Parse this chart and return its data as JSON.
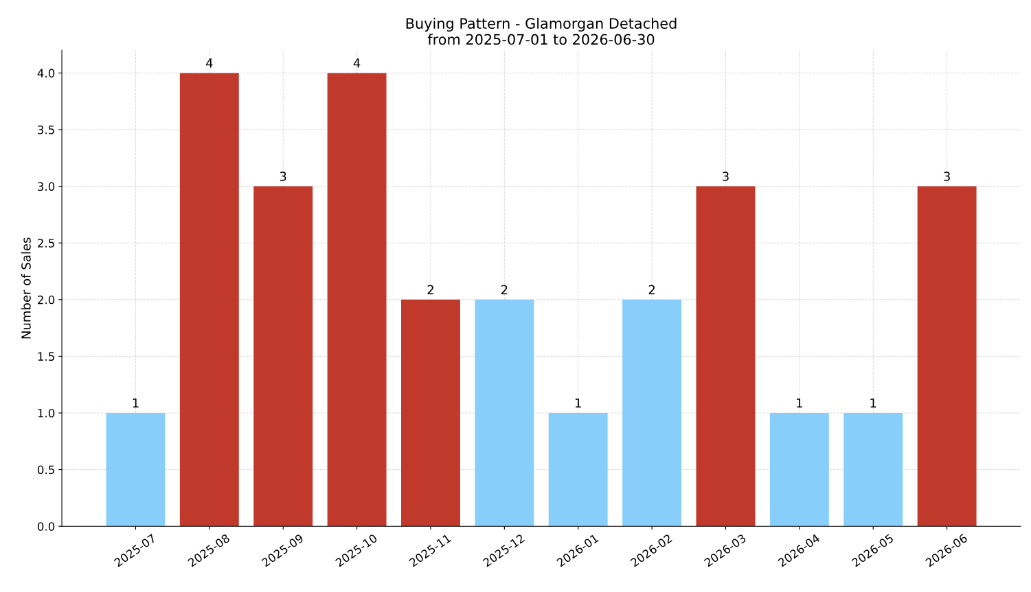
{
  "chart_data": {
    "type": "bar",
    "title": "Buying Pattern - Glamorgan Detached\nfrom 2025-07-01 to 2026-06-30",
    "ylabel": "Number of Sales",
    "categories": [
      "2025-07",
      "2025-08",
      "2025-09",
      "2025-10",
      "2025-11",
      "2025-12",
      "2026-01",
      "2026-02",
      "2026-03",
      "2026-04",
      "2026-05",
      "2026-06"
    ],
    "values": [
      1,
      4,
      3,
      4,
      2,
      2,
      1,
      2,
      3,
      1,
      1,
      3
    ],
    "colors": [
      "#87cefa",
      "#c0392b",
      "#c0392b",
      "#c0392b",
      "#c0392b",
      "#87cefa",
      "#87cefa",
      "#87cefa",
      "#c0392b",
      "#87cefa",
      "#87cefa",
      "#c0392b"
    ],
    "ylim": [
      0,
      4.2
    ],
    "yticks": [
      {
        "value": 0,
        "label": "0.0"
      },
      {
        "value": 0.5,
        "label": "0.5"
      },
      {
        "value": 1,
        "label": "1.0"
      },
      {
        "value": 1.5,
        "label": "1.5"
      },
      {
        "value": 2,
        "label": "2.0"
      },
      {
        "value": 2.5,
        "label": "2.5"
      },
      {
        "value": 3,
        "label": "3.0"
      },
      {
        "value": 3.5,
        "label": "3.5"
      },
      {
        "value": 4,
        "label": "4.0"
      }
    ],
    "grid": true,
    "data_labels": true
  }
}
